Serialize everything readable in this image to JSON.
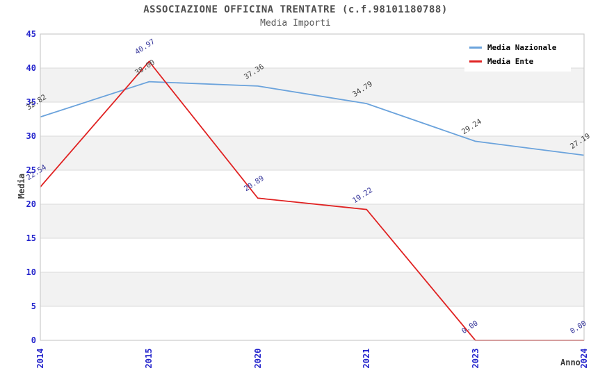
{
  "chart_data": {
    "type": "line",
    "title": "ASSOCIAZIONE OFFICINA TRENTATRE (c.f.98101180788)",
    "subtitle": "Media Importi",
    "xlabel": "Anno",
    "ylabel": "Media",
    "categories": [
      "2014",
      "2015",
      "2020",
      "2021",
      "2023",
      "2024"
    ],
    "ylim": [
      0,
      45
    ],
    "ytick_step": 5,
    "yticks": [
      0,
      5,
      10,
      15,
      20,
      25,
      30,
      35,
      40,
      45
    ],
    "grid": "horizontal-gridlines-with-alternating-bands",
    "legend_position": "top-right-inside",
    "series": [
      {
        "name": "Media Nazionale",
        "color": "#6ba3dc",
        "label_color": "#404040",
        "values": [
          32.82,
          38.0,
          37.36,
          34.79,
          29.24,
          27.19
        ]
      },
      {
        "name": "Media Ente",
        "color": "#e02222",
        "label_color": "#333399",
        "values": [
          22.54,
          40.97,
          20.89,
          19.22,
          0.0,
          0.0
        ]
      }
    ],
    "style": {
      "background_color": "#ffffff",
      "band_color": "#f2f2f2",
      "gridline_color": "#d9d9d9",
      "border_color": "#cccccc",
      "axis_tick_color": "#2323cc",
      "title_color": "#4f4f4f",
      "axis_title_color": "#3a3a3a",
      "legend_text_color": "#000000"
    }
  }
}
